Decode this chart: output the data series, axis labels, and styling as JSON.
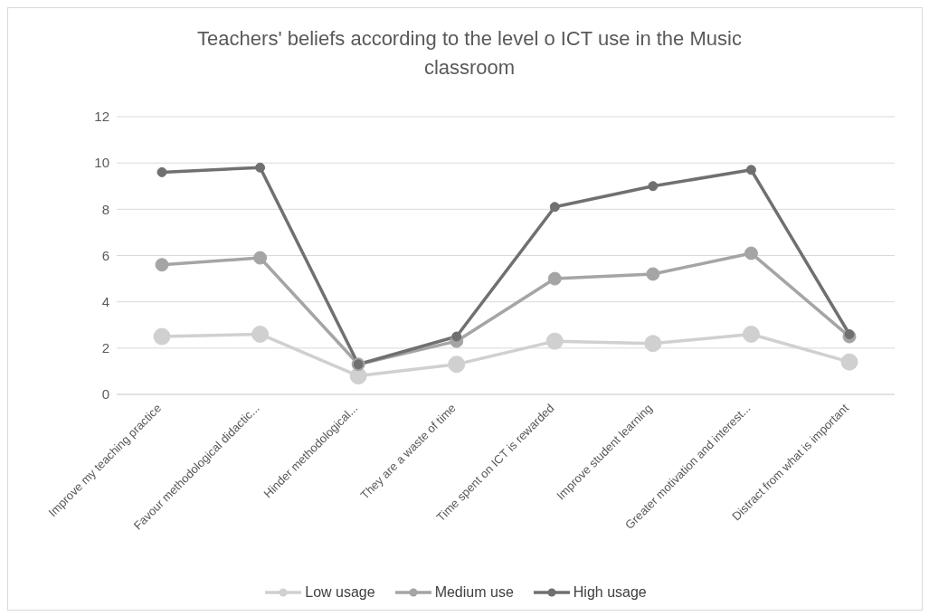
{
  "chart_data": {
    "type": "line",
    "title": "Teachers' beliefs according to the level o ICT use in the Music classroom",
    "categories": [
      "Improve my teaching practice",
      "Favour methodological didactic...",
      "Hinder methodological...",
      "They are a waste of time",
      "Time spent on ICT is rewarded",
      "Improve student learning",
      "Greater motivation and interest...",
      "Distract from what is important"
    ],
    "series": [
      {
        "name": "Low usage",
        "color": "#d0d0d0",
        "values": [
          2.5,
          2.6,
          0.8,
          1.3,
          2.3,
          2.2,
          2.6,
          1.4
        ]
      },
      {
        "name": "Medium use",
        "color": "#a5a5a5",
        "values": [
          5.6,
          5.9,
          1.3,
          2.3,
          5.0,
          5.2,
          6.1,
          2.5
        ]
      },
      {
        "name": "High usage",
        "color": "#707070",
        "values": [
          9.6,
          9.8,
          1.3,
          2.5,
          8.1,
          9.0,
          9.7,
          2.6
        ]
      }
    ],
    "ylim": [
      0,
      12
    ],
    "yticks": [
      0,
      2,
      4,
      6,
      8,
      10,
      12
    ],
    "grid": "y",
    "legend": "bottom",
    "marker": "circle",
    "line_style": "solid"
  }
}
